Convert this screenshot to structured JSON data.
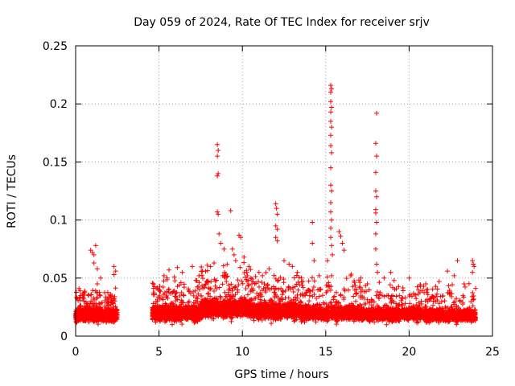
{
  "chart_data": {
    "type": "scatter",
    "title": "Day 059 of 2024, Rate Of TEC Index for receiver srjv",
    "xlabel": "GPS time / hours",
    "ylabel": "ROTI / TECUs",
    "xlim": [
      0,
      25
    ],
    "ylim": [
      0,
      0.25
    ],
    "xticks": [
      0,
      5,
      10,
      15,
      20,
      25
    ],
    "yticks": [
      0,
      0.05,
      0.1,
      0.15,
      0.2,
      0.25
    ],
    "xtick_labels": [
      "0",
      "5",
      "10",
      "15",
      "20",
      "25"
    ],
    "ytick_labels": [
      "0",
      "0.05",
      "0.1",
      "0.15",
      "0.2",
      "0.25"
    ],
    "grid": true,
    "marker": "+",
    "color": "#ff0000",
    "series": [
      {
        "name": "ROTI",
        "points": [
          [
            0.2,
            0.041
          ],
          [
            0.3,
            0.035
          ],
          [
            0.5,
            0.03
          ],
          [
            0.9,
            0.074
          ],
          [
            1.0,
            0.072
          ],
          [
            1.1,
            0.07
          ],
          [
            1.2,
            0.078
          ],
          [
            1.1,
            0.063
          ],
          [
            1.3,
            0.058
          ],
          [
            1.5,
            0.05
          ],
          [
            1.3,
            0.045
          ],
          [
            2.3,
            0.06
          ],
          [
            2.4,
            0.056
          ],
          [
            2.3,
            0.053
          ],
          [
            5.3,
            0.052
          ],
          [
            5.6,
            0.057
          ],
          [
            6.1,
            0.059
          ],
          [
            6.4,
            0.055
          ],
          [
            7.0,
            0.06
          ],
          [
            7.4,
            0.052
          ],
          [
            7.9,
            0.061
          ],
          [
            8.3,
            0.063
          ],
          [
            8.5,
            0.165
          ],
          [
            8.55,
            0.16
          ],
          [
            8.5,
            0.155
          ],
          [
            8.55,
            0.14
          ],
          [
            8.5,
            0.138
          ],
          [
            8.5,
            0.107
          ],
          [
            8.55,
            0.105
          ],
          [
            8.6,
            0.088
          ],
          [
            8.7,
            0.08
          ],
          [
            8.9,
            0.075
          ],
          [
            9.3,
            0.108
          ],
          [
            9.4,
            0.075
          ],
          [
            9.5,
            0.07
          ],
          [
            9.6,
            0.065
          ],
          [
            9.8,
            0.087
          ],
          [
            9.9,
            0.085
          ],
          [
            10.1,
            0.068
          ],
          [
            10.4,
            0.06
          ],
          [
            11.0,
            0.055
          ],
          [
            11.6,
            0.058
          ],
          [
            12.0,
            0.114
          ],
          [
            12.05,
            0.11
          ],
          [
            12.1,
            0.105
          ],
          [
            12.0,
            0.095
          ],
          [
            12.1,
            0.092
          ],
          [
            12.0,
            0.085
          ],
          [
            12.1,
            0.082
          ],
          [
            12.5,
            0.065
          ],
          [
            12.8,
            0.062
          ],
          [
            13.0,
            0.06
          ],
          [
            13.3,
            0.055
          ],
          [
            14.2,
            0.098
          ],
          [
            14.2,
            0.08
          ],
          [
            14.3,
            0.065
          ],
          [
            14.6,
            0.052
          ],
          [
            15.1,
            0.065
          ],
          [
            15.3,
            0.216
          ],
          [
            15.35,
            0.213
          ],
          [
            15.3,
            0.21
          ],
          [
            15.3,
            0.202
          ],
          [
            15.35,
            0.197
          ],
          [
            15.3,
            0.193
          ],
          [
            15.3,
            0.185
          ],
          [
            15.35,
            0.18
          ],
          [
            15.3,
            0.173
          ],
          [
            15.3,
            0.164
          ],
          [
            15.35,
            0.158
          ],
          [
            15.3,
            0.145
          ],
          [
            15.3,
            0.13
          ],
          [
            15.35,
            0.125
          ],
          [
            15.3,
            0.115
          ],
          [
            15.3,
            0.107
          ],
          [
            15.35,
            0.1
          ],
          [
            15.3,
            0.093
          ],
          [
            15.3,
            0.085
          ],
          [
            15.35,
            0.078
          ],
          [
            15.4,
            0.07
          ],
          [
            15.8,
            0.09
          ],
          [
            15.9,
            0.086
          ],
          [
            16.0,
            0.08
          ],
          [
            16.1,
            0.074
          ],
          [
            16.5,
            0.052
          ],
          [
            17.1,
            0.05
          ],
          [
            17.5,
            0.045
          ],
          [
            18.05,
            0.192
          ],
          [
            18.0,
            0.166
          ],
          [
            18.05,
            0.155
          ],
          [
            18.0,
            0.141
          ],
          [
            18.0,
            0.125
          ],
          [
            18.05,
            0.12
          ],
          [
            18.0,
            0.109
          ],
          [
            18.0,
            0.106
          ],
          [
            18.05,
            0.098
          ],
          [
            18.0,
            0.088
          ],
          [
            18.0,
            0.075
          ],
          [
            18.05,
            0.062
          ],
          [
            18.1,
            0.055
          ],
          [
            18.5,
            0.05
          ],
          [
            18.9,
            0.055
          ],
          [
            19.1,
            0.048
          ],
          [
            20.0,
            0.05
          ],
          [
            21.0,
            0.045
          ],
          [
            21.8,
            0.047
          ],
          [
            22.3,
            0.056
          ],
          [
            22.7,
            0.052
          ],
          [
            22.9,
            0.065
          ],
          [
            23.3,
            0.045
          ],
          [
            23.8,
            0.065
          ],
          [
            23.85,
            0.062
          ],
          [
            23.9,
            0.06
          ],
          [
            23.8,
            0.055
          ]
        ]
      }
    ]
  }
}
